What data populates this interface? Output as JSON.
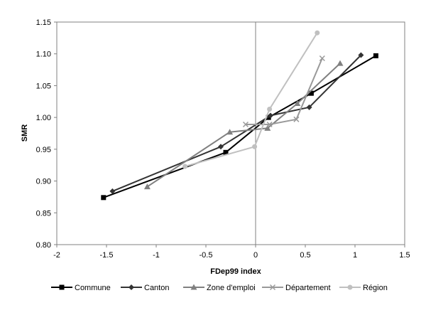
{
  "chart_data": {
    "type": "line",
    "title": "",
    "xlabel": "FDep99 index",
    "ylabel": "SMR",
    "xlim": [
      -2,
      1.5
    ],
    "ylim": [
      0.8,
      1.15
    ],
    "x_ticks": [
      "-2",
      "-1.5",
      "-1",
      "-0.5",
      "0",
      "0.5",
      "1",
      "1.5"
    ],
    "y_ticks": [
      "0.80",
      "0.85",
      "0.90",
      "0.95",
      "1.00",
      "1.05",
      "1.10",
      "1.15"
    ],
    "grid": "none",
    "reference_line_x": 0,
    "legend_position": "bottom",
    "series": [
      {
        "name": "Commune",
        "color": "#000000",
        "marker": "square",
        "x": [
          -1.53,
          -0.3,
          0.13,
          0.56,
          1.21
        ],
        "y": [
          0.874,
          0.945,
          1.0,
          1.038,
          1.097
        ]
      },
      {
        "name": "Canton",
        "color": "#333333",
        "marker": "diamond",
        "x": [
          -1.44,
          -0.35,
          0.15,
          0.54,
          1.06
        ],
        "y": [
          0.884,
          0.954,
          1.003,
          1.016,
          1.098
        ]
      },
      {
        "name": "Zone d'emploi",
        "color": "#808080",
        "marker": "triangle",
        "x": [
          -1.09,
          -0.26,
          0.12,
          0.42,
          0.85
        ],
        "y": [
          0.891,
          0.977,
          0.983,
          1.022,
          1.085
        ]
      },
      {
        "name": "Département",
        "color": "#999999",
        "marker": "x",
        "x": [
          -0.1,
          0.14,
          0.41,
          0.67
        ],
        "y": [
          0.989,
          0.989,
          0.997,
          1.093
        ]
      },
      {
        "name": "Région",
        "color": "#c0c0c0",
        "marker": "circle",
        "x": [
          -0.71,
          -0.01,
          0.14,
          0.62
        ],
        "y": [
          0.923,
          0.954,
          1.013,
          1.133
        ]
      }
    ]
  }
}
